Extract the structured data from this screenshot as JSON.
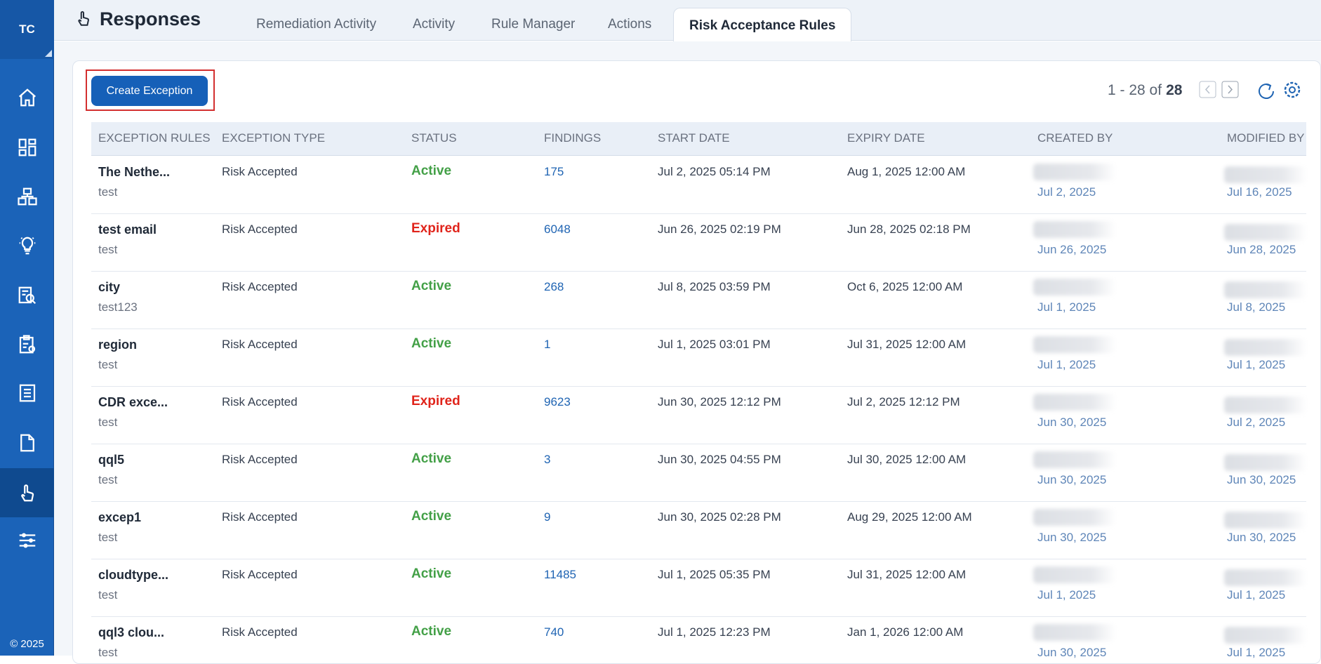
{
  "sidebar": {
    "brand": "TC",
    "footer": "© 2025"
  },
  "header": {
    "title": "Responses",
    "tabs": [
      "Remediation Activity",
      "Activity",
      "Rule Manager",
      "Actions",
      "Risk Acceptance Rules"
    ]
  },
  "toolbar": {
    "button": "Create Exception",
    "pagination": {
      "range": "1 - 28 of",
      "total": "28"
    }
  },
  "table": {
    "columns": [
      "EXCEPTION RULES",
      "EXCEPTION TYPE",
      "STATUS",
      "FINDINGS",
      "START DATE",
      "EXPIRY DATE",
      "CREATED BY",
      "MODIFIED BY"
    ],
    "rows": [
      {
        "name": "The Nethe...",
        "description": "test",
        "type": "Risk Accepted",
        "status": {
          "label": "Active",
          "color": "#43a047"
        },
        "findings": 175,
        "start_date": "Jul 2, 2025 05:14 PM",
        "expiry_date": "Aug 1, 2025 12:00 AM",
        "created": "Jul 2, 2025",
        "modified": "Jul 16, 2025"
      },
      {
        "name": "test email",
        "description": "test",
        "type": "Risk Accepted",
        "status": {
          "label": "Expired",
          "color": "#e0241b"
        },
        "findings": 6048,
        "start_date": "Jun 26, 2025 02:19 PM",
        "expiry_date": "Jun 28, 2025 02:18 PM",
        "created": "Jun 26, 2025",
        "modified": "Jun 28, 2025"
      },
      {
        "name": "city",
        "description": "test123",
        "type": "Risk Accepted",
        "status": {
          "label": "Active",
          "color": "#43a047"
        },
        "findings": 268,
        "start_date": "Jul 8, 2025 03:59 PM",
        "expiry_date": "Oct 6, 2025 12:00 AM",
        "created": "Jul 1, 2025",
        "modified": "Jul 8, 2025"
      },
      {
        "name": "region",
        "description": "test",
        "type": "Risk Accepted",
        "status": {
          "label": "Active",
          "color": "#43a047"
        },
        "findings": 1,
        "start_date": "Jul 1, 2025 03:01 PM",
        "expiry_date": "Jul 31, 2025 12:00 AM",
        "created": "Jul 1, 2025",
        "modified": "Jul 1, 2025"
      },
      {
        "name": "CDR exce...",
        "description": "test",
        "type": "Risk Accepted",
        "status": {
          "label": "Expired",
          "color": "#e0241b"
        },
        "findings": 9623,
        "start_date": "Jun 30, 2025 12:12 PM",
        "expiry_date": "Jul 2, 2025 12:12 PM",
        "created": "Jun 30, 2025",
        "modified": "Jul 2, 2025"
      },
      {
        "name": "qql5",
        "description": "test",
        "type": "Risk Accepted",
        "status": {
          "label": "Active",
          "color": "#43a047"
        },
        "findings": 3,
        "start_date": "Jun 30, 2025 04:55 PM",
        "expiry_date": "Jul 30, 2025 12:00 AM",
        "created": "Jun 30, 2025",
        "modified": "Jun 30, 2025"
      },
      {
        "name": "excep1",
        "description": "test",
        "type": "Risk Accepted",
        "status": {
          "label": "Active",
          "color": "#43a047"
        },
        "findings": 9,
        "start_date": "Jun 30, 2025 02:28 PM",
        "expiry_date": "Aug 29, 2025 12:00 AM",
        "created": "Jun 30, 2025",
        "modified": "Jun 30, 2025"
      },
      {
        "name": "cloudtype...",
        "description": "test",
        "type": "Risk Accepted",
        "status": {
          "label": "Active",
          "color": "#43a047"
        },
        "findings": 11485,
        "start_date": "Jul 1, 2025 05:35 PM",
        "expiry_date": "Jul 31, 2025 12:00 AM",
        "created": "Jul 1, 2025",
        "modified": "Jul 1, 2025"
      },
      {
        "name": "qql3 clou...",
        "description": "test",
        "type": "Risk Accepted",
        "status": {
          "label": "Active",
          "color": "#43a047"
        },
        "findings": 740,
        "start_date": "Jul 1, 2025 12:23 PM",
        "expiry_date": "Jan 1, 2026 12:00 AM",
        "created": "Jun 30, 2025",
        "modified": "Jul 1, 2025"
      }
    ]
  }
}
